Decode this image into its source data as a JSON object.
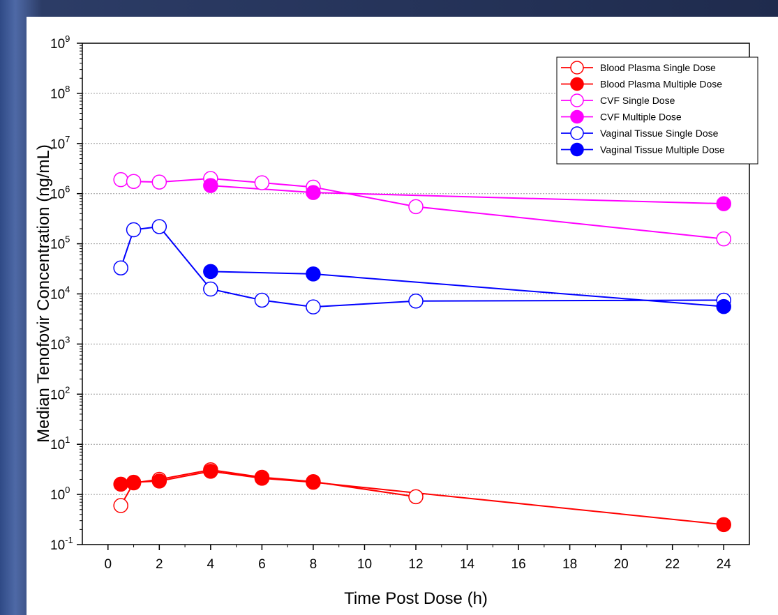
{
  "chart_data": {
    "type": "line",
    "title": "",
    "xlabel": "Time Post Dose (h)",
    "ylabel": "Median Tenofovir Concentration (ng/mL)",
    "xlim": [
      -1,
      25
    ],
    "x_ticks": [
      0,
      2,
      4,
      6,
      8,
      10,
      12,
      14,
      16,
      18,
      20,
      22,
      24
    ],
    "y_scale": "log",
    "y_exp_range": [
      -1,
      9
    ],
    "y_tick_base": "10",
    "y_tick_exponents": [
      "-1",
      "0",
      "1",
      "2",
      "3",
      "4",
      "5",
      "6",
      "7",
      "8",
      "9"
    ],
    "grid": "horizontal dotted",
    "legend_position": "top-right",
    "series": [
      {
        "name": "Blood Plasma Single Dose",
        "color": "#ff0000",
        "filled": false,
        "points": [
          [
            0.5,
            0.6
          ],
          [
            1,
            1.7
          ],
          [
            2,
            2.0
          ],
          [
            4,
            3.1
          ],
          [
            6,
            2.2
          ],
          [
            8,
            1.8
          ],
          [
            12,
            0.9
          ]
        ]
      },
      {
        "name": "Blood Plasma Multiple Dose",
        "color": "#ff0000",
        "filled": true,
        "points": [
          [
            0.5,
            1.6
          ],
          [
            1,
            1.75
          ],
          [
            2,
            1.85
          ],
          [
            4,
            2.9
          ],
          [
            6,
            2.1
          ],
          [
            8,
            1.75
          ],
          [
            24,
            0.25
          ]
        ]
      },
      {
        "name": "CVF Single Dose",
        "color": "#ff00ff",
        "filled": false,
        "points": [
          [
            0.5,
            1900000
          ],
          [
            1,
            1750000
          ],
          [
            2,
            1700000
          ],
          [
            4,
            2000000
          ],
          [
            6,
            1650000
          ],
          [
            8,
            1350000
          ],
          [
            12,
            550000
          ],
          [
            24,
            125000
          ]
        ]
      },
      {
        "name": "CVF Multiple Dose",
        "color": "#ff00ff",
        "filled": true,
        "points": [
          [
            4,
            1450000
          ],
          [
            8,
            1050000
          ],
          [
            24,
            630000
          ]
        ]
      },
      {
        "name": "Vaginal Tissue Single Dose",
        "color": "#0000ff",
        "filled": false,
        "points": [
          [
            0.5,
            33000
          ],
          [
            1,
            190000
          ],
          [
            2,
            220000
          ],
          [
            4,
            12500
          ],
          [
            6,
            7500
          ],
          [
            8,
            5500
          ],
          [
            12,
            7200
          ],
          [
            24,
            7500
          ]
        ]
      },
      {
        "name": "Vaginal Tissue Multiple Dose",
        "color": "#0000ff",
        "filled": true,
        "points": [
          [
            4,
            28000
          ],
          [
            8,
            25000
          ],
          [
            24,
            5600
          ]
        ]
      }
    ]
  }
}
